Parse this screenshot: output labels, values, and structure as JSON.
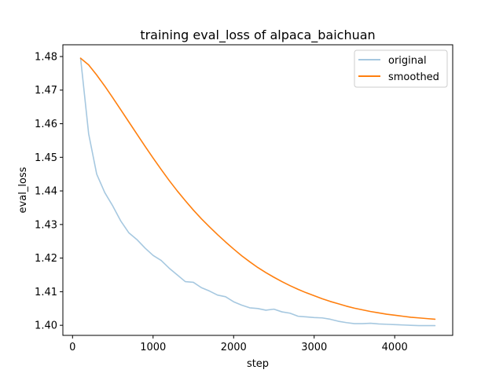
{
  "chart_data": {
    "type": "line",
    "title": "training eval_loss of alpaca_baichuan",
    "xlabel": "step",
    "ylabel": "eval_loss",
    "xlim": [
      -120,
      4720
    ],
    "ylim": [
      1.397,
      1.4835
    ],
    "xticks": [
      0,
      1000,
      2000,
      3000,
      4000
    ],
    "yticks": [
      1.4,
      1.41,
      1.42,
      1.43,
      1.44,
      1.45,
      1.46,
      1.47,
      1.48
    ],
    "ytick_labels": [
      "1.40",
      "1.41",
      "1.42",
      "1.43",
      "1.44",
      "1.45",
      "1.46",
      "1.47",
      "1.48"
    ],
    "legend_position": "top-right",
    "grid": false,
    "series": [
      {
        "name": "original",
        "color": "#a6c8e0",
        "x": [
          100,
          200,
          300,
          400,
          500,
          600,
          700,
          800,
          900,
          1000,
          1100,
          1200,
          1300,
          1400,
          1500,
          1600,
          1700,
          1800,
          1900,
          2000,
          2100,
          2200,
          2300,
          2400,
          2500,
          2600,
          2700,
          2800,
          2900,
          3000,
          3100,
          3200,
          3300,
          3400,
          3500,
          3600,
          3700,
          3800,
          3900,
          4000,
          4100,
          4200,
          4300,
          4400,
          4500
        ],
        "y": [
          1.4795,
          1.457,
          1.445,
          1.4395,
          1.4355,
          1.431,
          1.4275,
          1.4255,
          1.423,
          1.4208,
          1.4193,
          1.417,
          1.415,
          1.413,
          1.4128,
          1.4112,
          1.4102,
          1.409,
          1.4085,
          1.407,
          1.406,
          1.4052,
          1.405,
          1.4045,
          1.4048,
          1.404,
          1.4036,
          1.4027,
          1.4025,
          1.4023,
          1.4022,
          1.4018,
          1.4012,
          1.4008,
          1.4005,
          1.4005,
          1.4006,
          1.4004,
          1.4003,
          1.4002,
          1.4001,
          1.4,
          1.3999,
          1.3999,
          1.3999
        ]
      },
      {
        "name": "smoothed",
        "color": "#ff7f0e",
        "x": [
          100,
          200,
          300,
          400,
          500,
          600,
          700,
          800,
          900,
          1000,
          1100,
          1200,
          1300,
          1400,
          1500,
          1600,
          1700,
          1800,
          1900,
          2000,
          2100,
          2200,
          2300,
          2400,
          2500,
          2600,
          2700,
          2800,
          2900,
          3000,
          3100,
          3200,
          3300,
          3400,
          3500,
          3600,
          3700,
          3800,
          3900,
          4000,
          4100,
          4200,
          4300,
          4400,
          4500
        ],
        "y": [
          1.4795,
          1.4775,
          1.4745,
          1.4712,
          1.4677,
          1.4641,
          1.4605,
          1.4569,
          1.4533,
          1.4498,
          1.4464,
          1.4431,
          1.44,
          1.4371,
          1.4343,
          1.4317,
          1.4293,
          1.427,
          1.4248,
          1.4227,
          1.4207,
          1.4189,
          1.4172,
          1.4157,
          1.4143,
          1.413,
          1.4118,
          1.4107,
          1.4097,
          1.4088,
          1.4079,
          1.4071,
          1.4064,
          1.4057,
          1.4051,
          1.4046,
          1.4041,
          1.4037,
          1.4033,
          1.403,
          1.4027,
          1.4024,
          1.4022,
          1.402,
          1.4018
        ]
      }
    ]
  }
}
